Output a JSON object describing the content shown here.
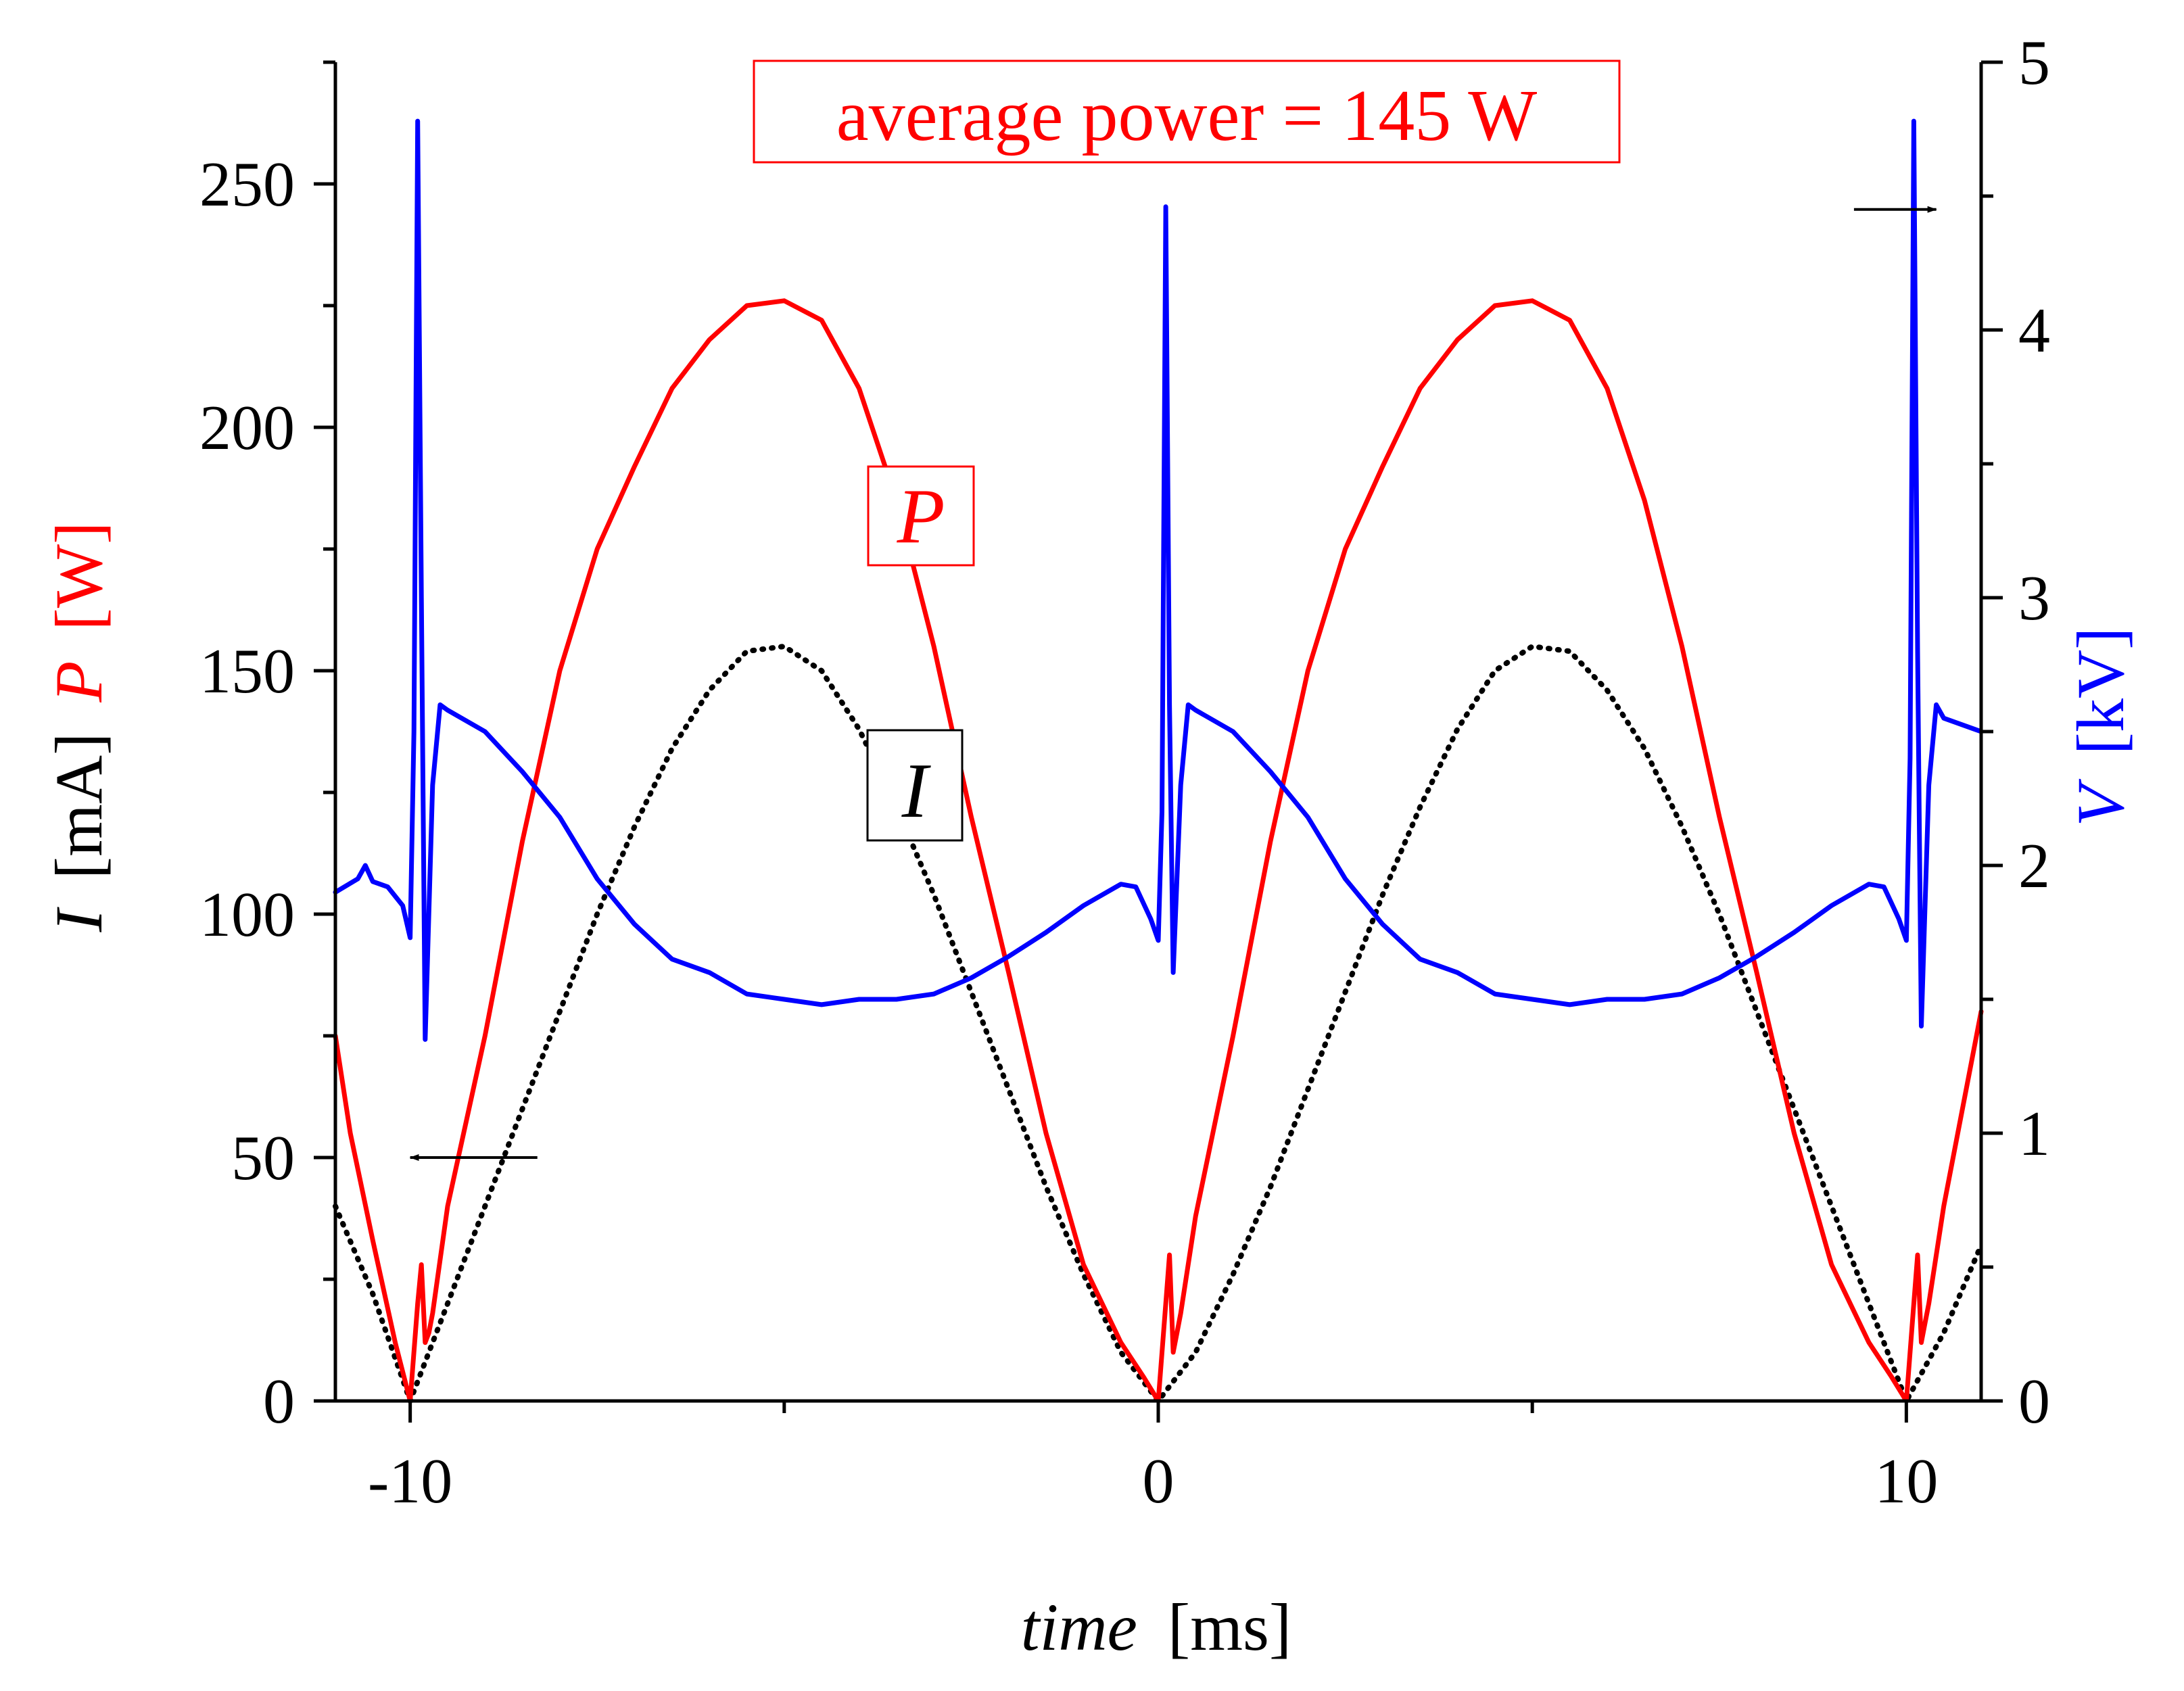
{
  "chart_data": {
    "type": "line",
    "annotation": "average power = 145 W",
    "x_axis": {
      "label_italic": "time",
      "label_unit": "[ms]",
      "range": [
        -11,
        11
      ],
      "ticks": [
        -10,
        0,
        10
      ],
      "tick_labels": [
        "-10",
        "0",
        "10"
      ]
    },
    "y_left": {
      "label_I": "I",
      "label_I_unit": "[mA]",
      "label_P": "P",
      "label_P_unit": "[W]",
      "range": [
        0,
        275
      ],
      "ticks": [
        0,
        50,
        100,
        150,
        200,
        250
      ],
      "tick_labels": [
        "0",
        "50",
        "100",
        "150",
        "200",
        "250"
      ]
    },
    "y_right": {
      "label_V": "V",
      "label_V_unit": "[kV]",
      "range": [
        0,
        5
      ],
      "ticks": [
        0,
        1,
        2,
        3,
        4,
        5
      ],
      "tick_labels": [
        "0",
        "1",
        "2",
        "3",
        "4",
        "5"
      ]
    },
    "series": [
      {
        "name": "P",
        "label": "P",
        "axis": "left",
        "color": "#ff0000",
        "style": "solid",
        "x": [
          -11,
          -10.8,
          -10.5,
          -10.2,
          -10.0,
          -9.9,
          -9.85,
          -9.8,
          -9.75,
          -9.7,
          -9.5,
          -9.0,
          -8.5,
          -8.0,
          -7.5,
          -7.0,
          -6.5,
          -6.0,
          -5.5,
          -5.0,
          -4.5,
          -4.0,
          -3.5,
          -3.0,
          -2.5,
          -2.0,
          -1.5,
          -1.0,
          -0.5,
          -0.2,
          0,
          0.1,
          0.15,
          0.2,
          0.25,
          0.3,
          0.5,
          1.0,
          1.5,
          2.0,
          2.5,
          3.0,
          3.5,
          4.0,
          4.5,
          5.0,
          5.5,
          6.0,
          6.5,
          7.0,
          7.5,
          8.0,
          8.5,
          9.0,
          9.5,
          9.8,
          10.0,
          10.1,
          10.15,
          10.2,
          10.25,
          10.3,
          10.5,
          11
        ],
        "y": [
          75,
          55,
          33,
          12,
          0,
          20,
          28,
          12,
          14,
          18,
          40,
          75,
          115,
          150,
          175,
          192,
          208,
          218,
          225,
          226,
          222,
          208,
          185,
          155,
          120,
          88,
          55,
          28,
          12,
          5,
          0,
          20,
          30,
          10,
          14,
          18,
          38,
          75,
          115,
          150,
          175,
          192,
          208,
          218,
          225,
          226,
          222,
          208,
          185,
          155,
          120,
          88,
          55,
          28,
          12,
          5,
          0,
          20,
          30,
          12,
          16,
          20,
          40,
          80
        ]
      },
      {
        "name": "I",
        "label": "I",
        "axis": "left",
        "color": "#000000",
        "style": "dotted",
        "x": [
          -11,
          -10.5,
          -10.0,
          -9.5,
          -9.0,
          -8.5,
          -8.0,
          -7.5,
          -7.0,
          -6.5,
          -6.0,
          -5.5,
          -5.0,
          -4.5,
          -4.0,
          -3.5,
          -3.0,
          -2.5,
          -2.0,
          -1.5,
          -1.0,
          -0.5,
          0,
          0.5,
          1.0,
          1.5,
          2.0,
          2.5,
          3.0,
          3.5,
          4.0,
          4.5,
          5.0,
          5.5,
          6.0,
          6.5,
          7.0,
          7.5,
          8.0,
          8.5,
          9.0,
          9.5,
          10.0,
          10.5,
          11
        ],
        "y": [
          40,
          22,
          0,
          20,
          40,
          60,
          80,
          100,
          118,
          134,
          146,
          154,
          155,
          150,
          138,
          122,
          104,
          84,
          64,
          44,
          26,
          10,
          0,
          10,
          26,
          44,
          64,
          84,
          104,
          122,
          138,
          150,
          155,
          154,
          146,
          134,
          118,
          100,
          80,
          60,
          40,
          20,
          0,
          14,
          32
        ]
      },
      {
        "name": "V",
        "label": "V",
        "axis": "right",
        "color": "#0000ff",
        "style": "solid",
        "x": [
          -11,
          -10.7,
          -10.6,
          -10.5,
          -10.3,
          -10.1,
          -10.0,
          -9.95,
          -9.9,
          -9.85,
          -9.8,
          -9.7,
          -9.6,
          -9.5,
          -9.0,
          -8.5,
          -8.0,
          -7.5,
          -7.0,
          -6.5,
          -6.0,
          -5.5,
          -5.0,
          -4.5,
          -4.0,
          -3.5,
          -3.0,
          -2.5,
          -2.0,
          -1.5,
          -1.0,
          -0.5,
          -0.3,
          -0.1,
          0.0,
          0.05,
          0.1,
          0.15,
          0.2,
          0.3,
          0.4,
          0.5,
          1.0,
          1.5,
          2.0,
          2.5,
          3.0,
          3.5,
          4.0,
          4.5,
          5.0,
          5.5,
          6.0,
          6.5,
          7.0,
          7.5,
          8.0,
          8.5,
          9.0,
          9.5,
          9.7,
          9.9,
          10.0,
          10.05,
          10.1,
          10.15,
          10.2,
          10.3,
          10.4,
          10.5,
          11
        ],
        "y": [
          1.9,
          1.95,
          2.0,
          1.94,
          1.92,
          1.85,
          1.73,
          2.5,
          4.78,
          3.0,
          1.35,
          2.3,
          2.6,
          2.58,
          2.5,
          2.35,
          2.18,
          1.95,
          1.78,
          1.65,
          1.6,
          1.52,
          1.5,
          1.48,
          1.5,
          1.5,
          1.52,
          1.58,
          1.66,
          1.75,
          1.85,
          1.93,
          1.92,
          1.8,
          1.72,
          2.2,
          4.46,
          2.6,
          1.6,
          2.3,
          2.6,
          2.58,
          2.5,
          2.35,
          2.18,
          1.95,
          1.78,
          1.65,
          1.6,
          1.52,
          1.5,
          1.48,
          1.5,
          1.5,
          1.52,
          1.58,
          1.66,
          1.75,
          1.85,
          1.93,
          1.92,
          1.8,
          1.72,
          2.4,
          4.78,
          2.8,
          1.4,
          2.3,
          2.6,
          2.55,
          2.5
        ]
      }
    ],
    "annotations": [
      {
        "text": "average power = 145 W",
        "color": "#ff0000"
      },
      {
        "text": "P",
        "color": "#ff0000",
        "series": "P"
      },
      {
        "text": "I",
        "color": "#000000",
        "series": "I"
      }
    ],
    "arrows": [
      {
        "points_to": "left axis",
        "from_x": -8.3,
        "to_x": -10.0,
        "y": 50,
        "axis": "left"
      },
      {
        "points_to": "right axis",
        "from_x": 9.3,
        "to_x": 10.4,
        "y": 4.45,
        "axis": "right"
      }
    ]
  }
}
